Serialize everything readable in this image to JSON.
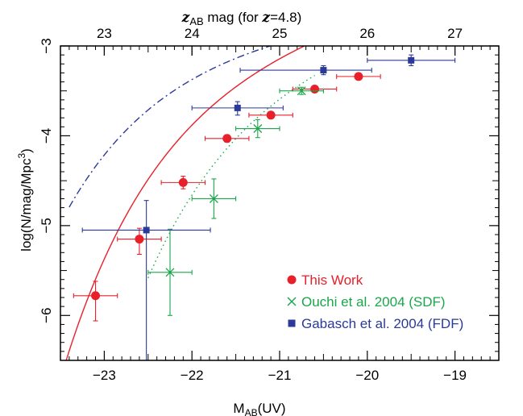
{
  "chart_data": {
    "type": "scatter",
    "xlabel": "M",
    "xlabel_sub": "AB",
    "xlabel_suffix": "(UV)",
    "ylabel": "log(N/mag/Mpc",
    "ylabel_sup": "3",
    "ylabel_suffix": ")",
    "top_xlabel_z": "z",
    "top_xlabel_sub": "AB",
    "top_xlabel_mid": " mag (for ",
    "top_xlabel_z2": "z",
    "top_xlabel_end": "=4.8)",
    "xlim": [
      -23.5,
      -18.5
    ],
    "ylim": [
      -6.5,
      -3
    ],
    "x_ticks": [
      -23,
      -22,
      -21,
      -20,
      -19
    ],
    "x_tick_labels": [
      "−23",
      "−22",
      "−21",
      "−20",
      "−19"
    ],
    "y_ticks": [
      -6,
      -5,
      -4,
      -3
    ],
    "y_tick_labels": [
      "−6",
      "−5",
      "−4",
      "−3"
    ],
    "top_ticks": [
      23,
      24,
      25,
      26,
      27
    ],
    "top_tick_labels": [
      "23",
      "24",
      "25",
      "26",
      "27"
    ],
    "top_axis_offset": 46.0,
    "grid": false,
    "legend_position": "bottom-right",
    "series": [
      {
        "name": "This Work",
        "marker": "circle",
        "color": "#e8202a",
        "points": [
          {
            "x": -23.1,
            "y": -5.78,
            "xerr": 0.25,
            "yerr_lo": 0.28,
            "yerr_hi": 0.16
          },
          {
            "x": -22.6,
            "y": -5.15,
            "xerr": 0.25,
            "yerr_lo": 0.17,
            "yerr_hi": 0.12
          },
          {
            "x": -22.1,
            "y": -4.52,
            "xerr": 0.25,
            "yerr_lo": 0.07,
            "yerr_hi": 0.07
          },
          {
            "x": -21.6,
            "y": -4.03,
            "xerr": 0.25,
            "yerr_lo": 0.04,
            "yerr_hi": 0.04
          },
          {
            "x": -21.1,
            "y": -3.77,
            "xerr": 0.25,
            "yerr_lo": 0.03,
            "yerr_hi": 0.03
          },
          {
            "x": -20.6,
            "y": -3.48,
            "xerr": 0.25,
            "yerr_lo": 0.03,
            "yerr_hi": 0.03
          },
          {
            "x": -20.1,
            "y": -3.34,
            "xerr": 0.25,
            "yerr_lo": 0.03,
            "yerr_hi": 0.03
          }
        ]
      },
      {
        "name": "Ouchi et al. 2004 (SDF)",
        "marker": "x",
        "color": "#1aa64a",
        "points": [
          {
            "x": -22.25,
            "y": -5.52,
            "xerr": 0.25,
            "yerr_lo": 0.48,
            "yerr_hi": 0.48
          },
          {
            "x": -21.75,
            "y": -4.7,
            "xerr": 0.25,
            "yerr_lo": 0.22,
            "yerr_hi": 0.22
          },
          {
            "x": -21.25,
            "y": -3.92,
            "xerr": 0.25,
            "yerr_lo": 0.1,
            "yerr_hi": 0.1
          },
          {
            "x": -20.75,
            "y": -3.5,
            "xerr": 0.25,
            "yerr_lo": 0.04,
            "yerr_hi": 0.04
          }
        ]
      },
      {
        "name": "Gabasch et al. 2004 (FDF)",
        "marker": "square",
        "color": "#2b3a98",
        "points": [
          {
            "x": -22.52,
            "y": -5.05,
            "xerr_lo": 0.73,
            "xerr_hi": 0.73,
            "yerr_lo": 1.45,
            "yerr_hi": 0.33
          },
          {
            "x": -21.48,
            "y": -3.69,
            "xerr_lo": 0.52,
            "xerr_hi": 0.52,
            "yerr_lo": 0.08,
            "yerr_hi": 0.07
          },
          {
            "x": -20.5,
            "y": -3.27,
            "xerr_lo": 0.95,
            "xerr_hi": 0.55,
            "yerr_lo": 0.05,
            "yerr_hi": 0.05
          },
          {
            "x": -19.5,
            "y": -3.16,
            "xerr_lo": 0.5,
            "xerr_hi": 0.5,
            "yerr_lo": 0.06,
            "yerr_hi": 0.06
          }
        ]
      }
    ],
    "fit_curves": [
      {
        "series": "This Work",
        "style": "solid",
        "color": "#e8202a",
        "phi_star_log": -2.85,
        "m_star": -21.3,
        "alpha": -1.6,
        "x_range": [
          -23.45,
          -19.8
        ]
      },
      {
        "series": "Ouchi et al. 2004 (SDF)",
        "style": "dotted",
        "color": "#1aa64a",
        "phi_star_log": -2.95,
        "m_star": -20.75,
        "alpha": -1.6,
        "x_range": [
          -22.5,
          -20.6
        ]
      },
      {
        "series": "Gabasch et al. 2004 (FDF)",
        "style": "dashdot",
        "color": "#2b3a98",
        "phi_star_log": -2.85,
        "m_star": -21.9,
        "alpha": -1.3,
        "x_range": [
          -23.4,
          -18.5
        ]
      }
    ]
  }
}
